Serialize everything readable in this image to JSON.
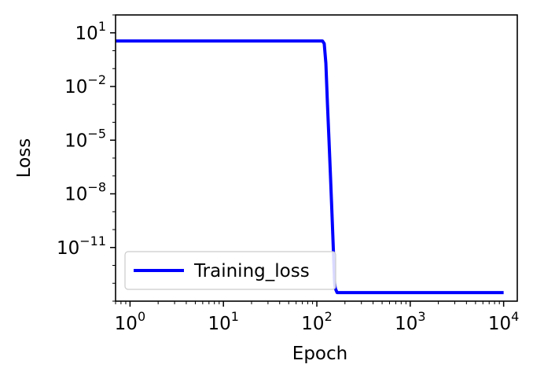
{
  "chart_data": {
    "type": "line",
    "title": "",
    "xlabel": "Epoch",
    "ylabel": "Loss",
    "xscale": "log",
    "yscale": "log",
    "xlim": [
      0.7,
      14000
    ],
    "ylim": [
      1e-14,
      100
    ],
    "grid": false,
    "legend_position": "lower-left",
    "x_ticks": [
      1,
      10,
      100,
      1000,
      10000
    ],
    "x_tick_labels": [
      {
        "base": "10",
        "exp": "0"
      },
      {
        "base": "10",
        "exp": "1"
      },
      {
        "base": "10",
        "exp": "2"
      },
      {
        "base": "10",
        "exp": "3"
      },
      {
        "base": "10",
        "exp": "4"
      }
    ],
    "y_ticks": [
      10,
      0.01,
      1e-05,
      1e-08,
      1e-11
    ],
    "y_tick_labels": [
      {
        "base": "10",
        "exp": "1"
      },
      {
        "base": "10",
        "exp": "−2"
      },
      {
        "base": "10",
        "exp": "−5"
      },
      {
        "base": "10",
        "exp": "−8"
      },
      {
        "base": "10",
        "exp": "−11"
      }
    ],
    "series": [
      {
        "name": "Training_loss",
        "color": "#0000ff",
        "x": [
          0.7,
          1,
          10,
          100,
          115,
          120,
          125,
          130,
          135,
          140,
          145,
          150,
          155,
          158,
          165,
          180,
          300,
          1000,
          10000
        ],
        "y": [
          3.5,
          3.5,
          3.5,
          3.5,
          3.5,
          2.5,
          0.2,
          0.001,
          1e-05,
          1e-07,
          1e-09,
          1e-11,
          1e-13,
          5e-14,
          3e-14,
          3e-14,
          3e-14,
          3e-14,
          3e-14
        ]
      }
    ]
  }
}
